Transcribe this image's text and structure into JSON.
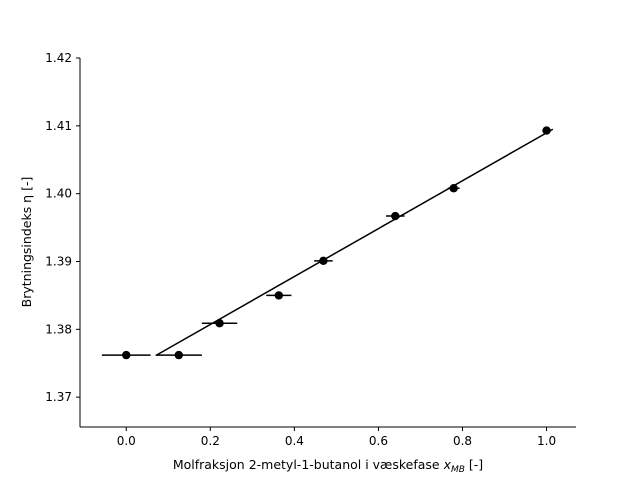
{
  "chart_data": {
    "type": "scatter",
    "title": "",
    "xlabel_main": "Molfraksjon 2-metyl-1-butanol i væskefase ",
    "xlabel_var": "x",
    "xlabel_sub": "MB",
    "xlabel_tail": " [-]",
    "ylabel": "Brytningsindeks η [-]",
    "xlim": [
      -0.11,
      1.07
    ],
    "ylim": [
      1.3656,
      1.42
    ],
    "x_ticks": [
      0.0,
      0.2,
      0.4,
      0.6,
      0.8,
      1.0
    ],
    "x_tick_labels": [
      "0.0",
      "0.2",
      "0.4",
      "0.6",
      "0.8",
      "1.0"
    ],
    "y_ticks": [
      1.37,
      1.38,
      1.39,
      1.4,
      1.41,
      1.42
    ],
    "y_tick_labels": [
      "1.37",
      "1.38",
      "1.39",
      "1.40",
      "1.41",
      "1.42"
    ],
    "grid": false,
    "marker_color": "#000000",
    "line_color": "#000000",
    "points": [
      {
        "x": 0.0,
        "y": 1.3762,
        "xerr": 0.058
      },
      {
        "x": 0.125,
        "y": 1.3762,
        "xerr": 0.055
      },
      {
        "x": 0.222,
        "y": 1.3809,
        "xerr": 0.042
      },
      {
        "x": 0.363,
        "y": 1.385,
        "xerr": 0.03
      },
      {
        "x": 0.469,
        "y": 1.3901,
        "xerr": 0.022
      },
      {
        "x": 0.64,
        "y": 1.3967,
        "xerr": 0.022
      },
      {
        "x": 0.779,
        "y": 1.4008,
        "xerr": 0.014
      },
      {
        "x": 1.0,
        "y": 1.4093,
        "xerr": 0.01
      }
    ],
    "fit_line": {
      "x": [
        0.072,
        1.015
      ],
      "y": [
        1.3762,
        1.4095
      ]
    }
  }
}
